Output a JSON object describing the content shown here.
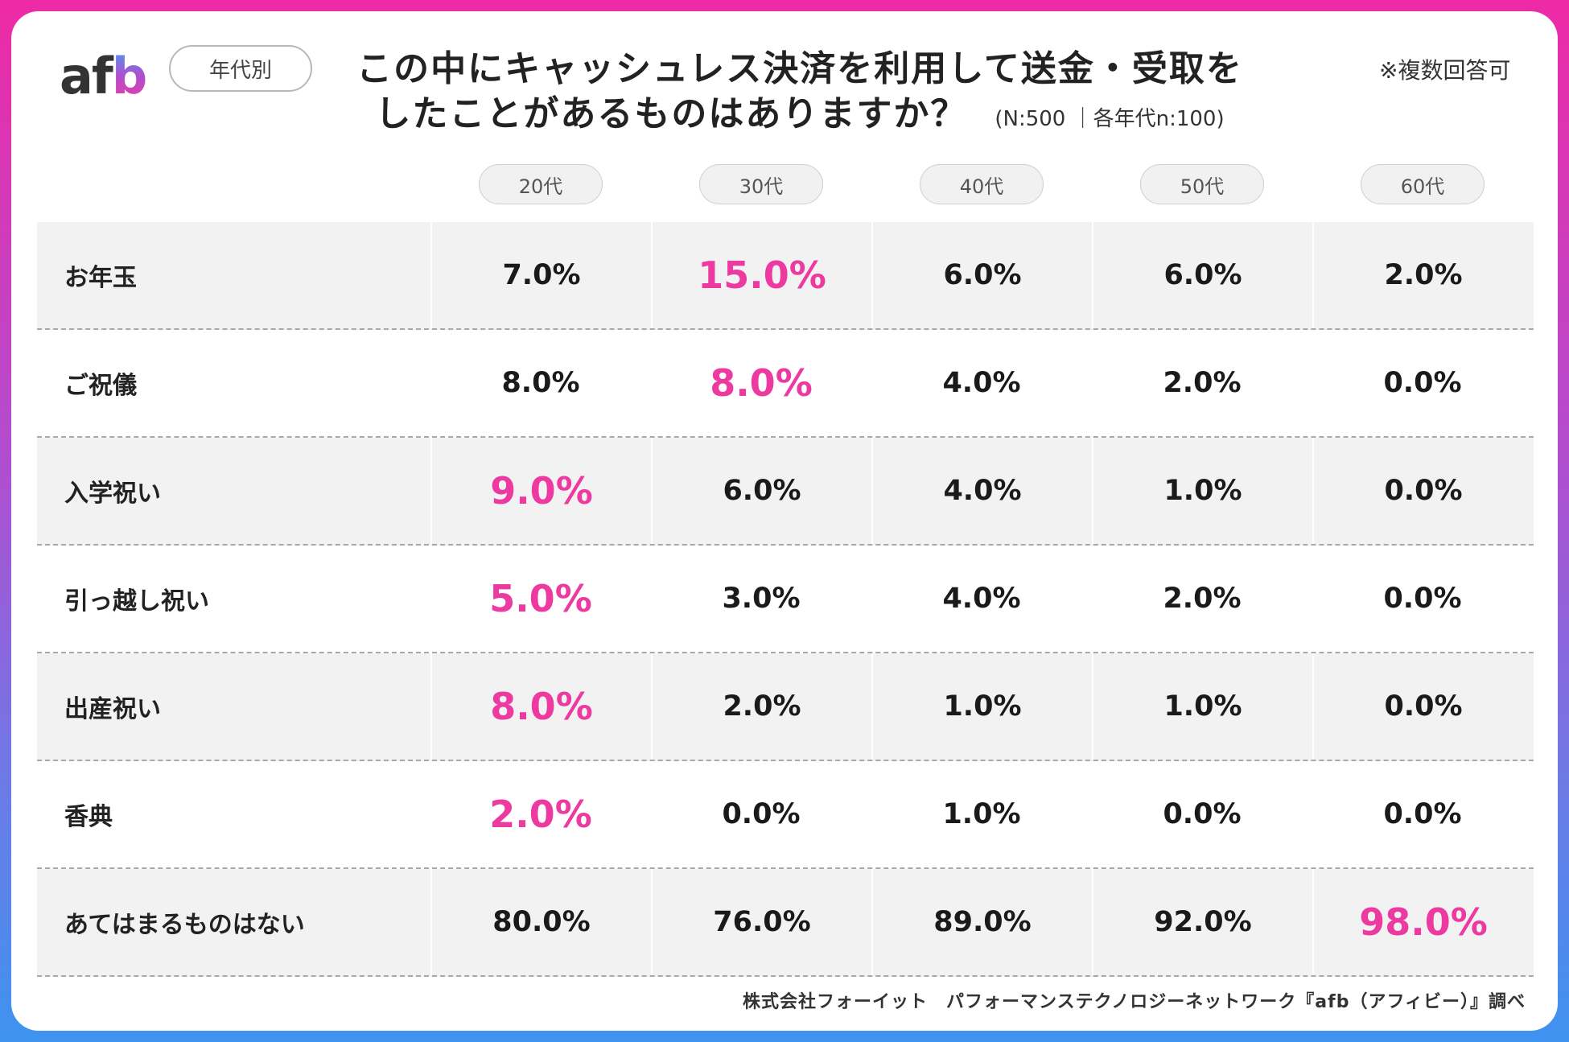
{
  "brand": {
    "logo_main": "af",
    "logo_accent": "b"
  },
  "category_pill": "年代別",
  "title": {
    "line1": "この中にキャッシュレス決済を利用して送金・受取を",
    "line2": "したことがあるものはありますか？",
    "sample": "(N:500 ｜各年代n:100)"
  },
  "note": "※複数回答可",
  "footer": "株式会社フォーイット　パフォーマンステクノロジーネットワーク『afb（アフィビー）』調べ",
  "colors": {
    "highlight": "#ec3aa0",
    "text": "#1a1a1a"
  },
  "chart_data": {
    "type": "table",
    "title": "この中にキャッシュレス決済を利用して送金・受取をしたことがあるものはありますか？",
    "columns": [
      "20代",
      "30代",
      "40代",
      "50代",
      "60代"
    ],
    "rows": [
      {
        "label": "お年玉",
        "values": [
          "7.0%",
          "15.0%",
          "6.0%",
          "6.0%",
          "2.0%"
        ],
        "highlight": [
          false,
          true,
          false,
          false,
          false
        ]
      },
      {
        "label": "ご祝儀",
        "values": [
          "8.0%",
          "8.0%",
          "4.0%",
          "2.0%",
          "0.0%"
        ],
        "highlight": [
          false,
          true,
          false,
          false,
          false
        ]
      },
      {
        "label": "入学祝い",
        "values": [
          "9.0%",
          "6.0%",
          "4.0%",
          "1.0%",
          "0.0%"
        ],
        "highlight": [
          true,
          false,
          false,
          false,
          false
        ]
      },
      {
        "label": "引っ越し祝い",
        "values": [
          "5.0%",
          "3.0%",
          "4.0%",
          "2.0%",
          "0.0%"
        ],
        "highlight": [
          true,
          false,
          false,
          false,
          false
        ]
      },
      {
        "label": "出産祝い",
        "values": [
          "8.0%",
          "2.0%",
          "1.0%",
          "1.0%",
          "0.0%"
        ],
        "highlight": [
          true,
          false,
          false,
          false,
          false
        ]
      },
      {
        "label": "香典",
        "values": [
          "2.0%",
          "0.0%",
          "1.0%",
          "0.0%",
          "0.0%"
        ],
        "highlight": [
          true,
          false,
          false,
          false,
          false
        ]
      },
      {
        "label": "あてはまるものはない",
        "values": [
          "80.0%",
          "76.0%",
          "89.0%",
          "92.0%",
          "98.0%"
        ],
        "highlight": [
          false,
          false,
          false,
          false,
          true
        ]
      }
    ]
  }
}
